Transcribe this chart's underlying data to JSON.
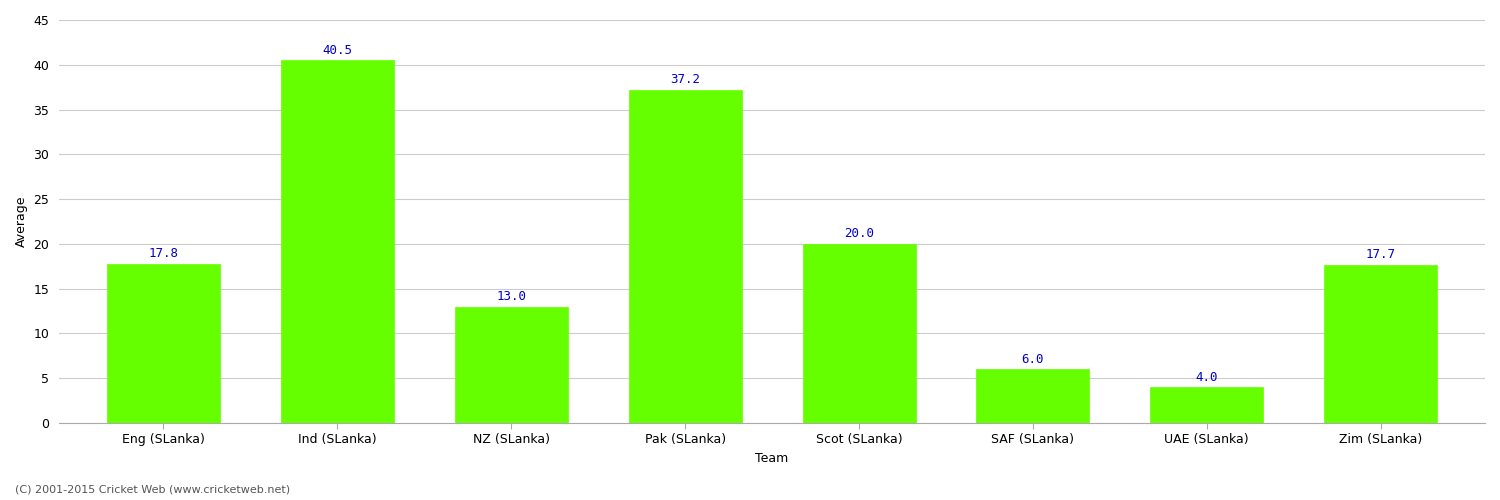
{
  "categories": [
    "Eng (SLanka)",
    "Ind (SLanka)",
    "NZ (SLanka)",
    "Pak (SLanka)",
    "Scot (SLanka)",
    "SAF (SLanka)",
    "UAE (SLanka)",
    "Zim (SLanka)"
  ],
  "values": [
    17.8,
    40.5,
    13.0,
    37.2,
    20.0,
    6.0,
    4.0,
    17.7
  ],
  "bar_color": "#66ff00",
  "bar_edgecolor": "#66ff00",
  "xlabel": "Team",
  "ylabel": "Average",
  "ylim": [
    0,
    45
  ],
  "yticks": [
    0,
    5,
    10,
    15,
    20,
    25,
    30,
    35,
    40,
    45
  ],
  "label_color": "#0000cc",
  "label_fontsize": 9,
  "axis_fontsize": 9,
  "xlabel_fontsize": 9,
  "ylabel_fontsize": 9,
  "background_color": "#ffffff",
  "grid_color": "#cccccc",
  "footer": "(C) 2001-2015 Cricket Web (www.cricketweb.net)",
  "footer_fontsize": 8,
  "footer_color": "#555555",
  "bar_width": 0.65
}
